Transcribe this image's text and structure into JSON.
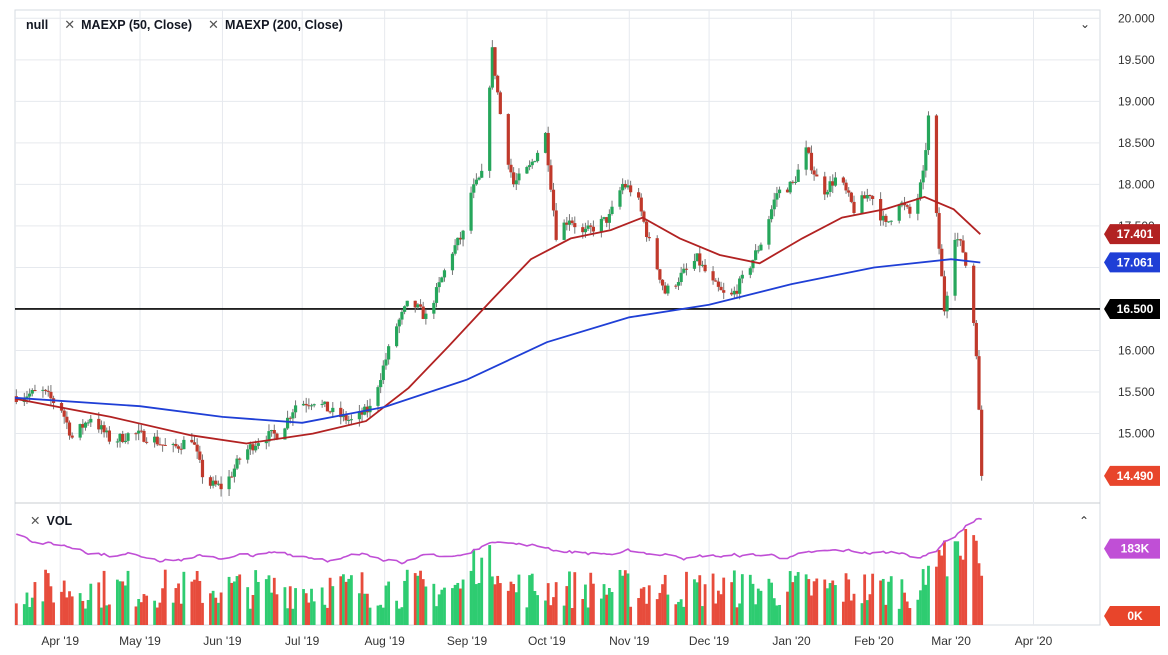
{
  "legend": {
    "symbol": "null",
    "ma1_label": "MAEXP (50, Close)",
    "ma2_label": "MAEXP (200, Close)",
    "volume_label": "VOL"
  },
  "icons": {
    "close": "close-icon",
    "collapse": "chevron-down-icon",
    "expand": "chevron-up-icon"
  },
  "colors": {
    "up": "#26a65b",
    "down": "#c0392b",
    "vol_up": "#2ecc71",
    "vol_down": "#e74c3c",
    "ma50": "#b22222",
    "ma200": "#1f3fd6",
    "vol_ma": "#c04fd6",
    "hline": "#000000"
  },
  "chart_data": {
    "type": "candlestick",
    "price_axis": {
      "ylim": [
        14.2,
        20.1
      ],
      "ticks": [
        "20.000",
        "19.500",
        "19.000",
        "18.500",
        "18.000",
        "17.500",
        "17.000",
        "16.500",
        "16.000",
        "15.500",
        "15.000"
      ]
    },
    "time_axis": {
      "start": "2019-03-15",
      "end": "2020-04-26",
      "labels": [
        {
          "label": "Apr '19",
          "date": "2019-04-01"
        },
        {
          "label": "May '19",
          "date": "2019-05-01"
        },
        {
          "label": "Jun '19",
          "date": "2019-06-01"
        },
        {
          "label": "Jul '19",
          "date": "2019-07-01"
        },
        {
          "label": "Aug '19",
          "date": "2019-08-01"
        },
        {
          "label": "Sep '19",
          "date": "2019-09-01"
        },
        {
          "label": "Oct '19",
          "date": "2019-10-01"
        },
        {
          "label": "Nov '19",
          "date": "2019-11-01"
        },
        {
          "label": "Dec '19",
          "date": "2019-12-01"
        },
        {
          "label": "Jan '20",
          "date": "2020-01-01"
        },
        {
          "label": "Feb '20",
          "date": "2020-02-01"
        },
        {
          "label": "Mar '20",
          "date": "2020-03-01"
        },
        {
          "label": "Apr '20",
          "date": "2020-04-01"
        }
      ]
    },
    "horizontal_line": {
      "value": 16.5,
      "label": "16.500"
    },
    "price_labels": [
      {
        "name": "MAEXP (50, Close)",
        "label": "17.401",
        "value": 17.401
      },
      {
        "name": "MAEXP (200, Close)",
        "label": "17.061",
        "value": 17.061
      },
      {
        "name": "last",
        "label": "14.490",
        "value": 14.49
      }
    ],
    "volume_axis": {
      "labels": [
        {
          "label": "183K",
          "value": 183000
        },
        {
          "label": "0K",
          "value": 0
        }
      ]
    },
    "close_series": [
      [
        "2019-03-15",
        15.45
      ],
      [
        "2019-03-25",
        15.5
      ],
      [
        "2019-04-01",
        15.3
      ],
      [
        "2019-04-05",
        14.95
      ],
      [
        "2019-04-12",
        15.2
      ],
      [
        "2019-04-20",
        14.9
      ],
      [
        "2019-04-27",
        15.0
      ],
      [
        "2019-05-05",
        14.95
      ],
      [
        "2019-05-12",
        14.8
      ],
      [
        "2019-05-20",
        14.95
      ],
      [
        "2019-05-25",
        14.4
      ],
      [
        "2019-06-01",
        14.35
      ],
      [
        "2019-06-08",
        14.75
      ],
      [
        "2019-06-15",
        14.95
      ],
      [
        "2019-06-22",
        15.0
      ],
      [
        "2019-06-28",
        15.35
      ],
      [
        "2019-07-05",
        15.4
      ],
      [
        "2019-07-12",
        15.25
      ],
      [
        "2019-07-19",
        15.15
      ],
      [
        "2019-07-26",
        15.3
      ],
      [
        "2019-08-01",
        15.9
      ],
      [
        "2019-08-05",
        16.3
      ],
      [
        "2019-08-10",
        16.6
      ],
      [
        "2019-08-16",
        16.4
      ],
      [
        "2019-08-20",
        16.7
      ],
      [
        "2019-08-26",
        17.2
      ],
      [
        "2019-08-30",
        17.4
      ],
      [
        "2019-09-02",
        17.9
      ],
      [
        "2019-09-06",
        18.1
      ],
      [
        "2019-09-10",
        19.6
      ],
      [
        "2019-09-14",
        18.6
      ],
      [
        "2019-09-18",
        18.0
      ],
      [
        "2019-09-24",
        18.2
      ],
      [
        "2019-09-30",
        18.6
      ],
      [
        "2019-10-04",
        17.4
      ],
      [
        "2019-10-09",
        17.6
      ],
      [
        "2019-10-14",
        17.4
      ],
      [
        "2019-10-19",
        17.5
      ],
      [
        "2019-10-24",
        17.6
      ],
      [
        "2019-10-29",
        18.0
      ],
      [
        "2019-11-03",
        17.9
      ],
      [
        "2019-11-08",
        17.3
      ],
      [
        "2019-11-14",
        16.7
      ],
      [
        "2019-11-20",
        16.9
      ],
      [
        "2019-11-26",
        17.1
      ],
      [
        "2019-12-02",
        16.8
      ],
      [
        "2019-12-08",
        16.6
      ],
      [
        "2019-12-14",
        16.9
      ],
      [
        "2019-12-20",
        17.3
      ],
      [
        "2019-12-26",
        17.9
      ],
      [
        "2020-01-01",
        18.0
      ],
      [
        "2020-01-06",
        18.4
      ],
      [
        "2020-01-12",
        17.9
      ],
      [
        "2020-01-18",
        18.1
      ],
      [
        "2020-01-24",
        17.7
      ],
      [
        "2020-01-30",
        17.9
      ],
      [
        "2020-02-05",
        17.5
      ],
      [
        "2020-02-10",
        17.8
      ],
      [
        "2020-02-15",
        17.6
      ],
      [
        "2020-02-19",
        18.1
      ],
      [
        "2020-02-21",
        18.8
      ],
      [
        "2020-02-24",
        17.6
      ],
      [
        "2020-02-27",
        16.5
      ],
      [
        "2020-03-02",
        17.4
      ],
      [
        "2020-03-05",
        17.2
      ],
      [
        "2020-03-08",
        16.7
      ],
      [
        "2020-03-10",
        16.0
      ],
      [
        "2020-03-12",
        14.49
      ]
    ],
    "ma50_series": [
      [
        "2019-03-15",
        15.42
      ],
      [
        "2019-04-20",
        15.2
      ],
      [
        "2019-05-20",
        14.98
      ],
      [
        "2019-06-10",
        14.88
      ],
      [
        "2019-07-05",
        15.0
      ],
      [
        "2019-07-25",
        15.15
      ],
      [
        "2019-08-10",
        15.55
      ],
      [
        "2019-08-25",
        16.05
      ],
      [
        "2019-09-10",
        16.6
      ],
      [
        "2019-09-25",
        17.1
      ],
      [
        "2019-10-10",
        17.35
      ],
      [
        "2019-10-25",
        17.45
      ],
      [
        "2019-11-06",
        17.6
      ],
      [
        "2019-11-20",
        17.35
      ],
      [
        "2019-12-05",
        17.15
      ],
      [
        "2019-12-20",
        17.05
      ],
      [
        "2020-01-05",
        17.35
      ],
      [
        "2020-01-20",
        17.6
      ],
      [
        "2020-02-05",
        17.7
      ],
      [
        "2020-02-20",
        17.85
      ],
      [
        "2020-03-02",
        17.7
      ],
      [
        "2020-03-12",
        17.4
      ]
    ],
    "ma200_series": [
      [
        "2019-03-15",
        15.43
      ],
      [
        "2019-05-01",
        15.33
      ],
      [
        "2019-06-01",
        15.2
      ],
      [
        "2019-07-01",
        15.13
      ],
      [
        "2019-08-01",
        15.32
      ],
      [
        "2019-09-01",
        15.65
      ],
      [
        "2019-10-01",
        16.1
      ],
      [
        "2019-11-01",
        16.4
      ],
      [
        "2019-12-01",
        16.55
      ],
      [
        "2020-01-01",
        16.8
      ],
      [
        "2020-02-01",
        17.0
      ],
      [
        "2020-03-01",
        17.1
      ],
      [
        "2020-03-12",
        17.06
      ]
    ],
    "volume": {
      "count": 250,
      "last_value": 183000
    }
  }
}
